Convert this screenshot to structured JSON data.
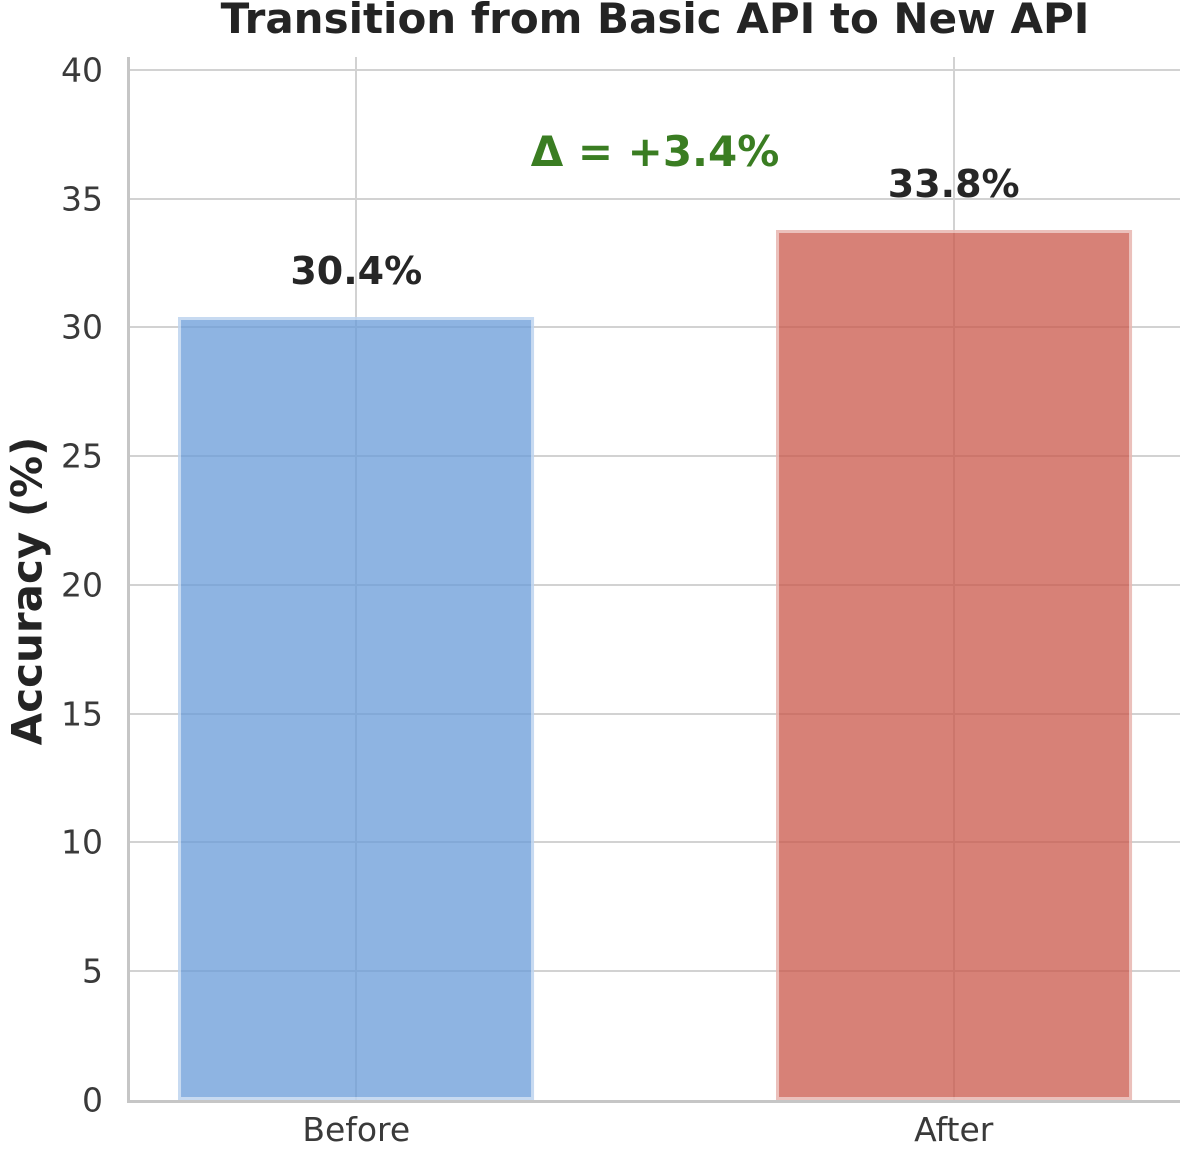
{
  "chart_data": {
    "type": "bar",
    "title": "Transition from Basic API to New API",
    "ylabel": "Accuracy (%)",
    "xlabel": "",
    "categories": [
      "Before",
      "After"
    ],
    "values": [
      30.4,
      33.8
    ],
    "bar_value_labels": [
      "30.4%",
      "33.8%"
    ],
    "annotation": {
      "text": "Δ = +3.4%",
      "color": "#3a7d22"
    },
    "ylim": [
      0,
      40.5
    ],
    "yticks": [
      0,
      5,
      10,
      15,
      20,
      25,
      30,
      35,
      40
    ],
    "grid": "both",
    "legend": "none",
    "colors": {
      "bar_hex": [
        "#8eb3e2",
        "#d6817a"
      ],
      "bar_fills_rgba": [
        "rgba(104,155,216,0.75)",
        "rgba(202,87,74,0.75)"
      ],
      "annotation_green": "#3a7d22",
      "text": "#262626",
      "tick_text": "#3a3a3a",
      "grid": "#d2d2d2",
      "spine": "#c6c6c6",
      "background": "#ffffff"
    }
  }
}
